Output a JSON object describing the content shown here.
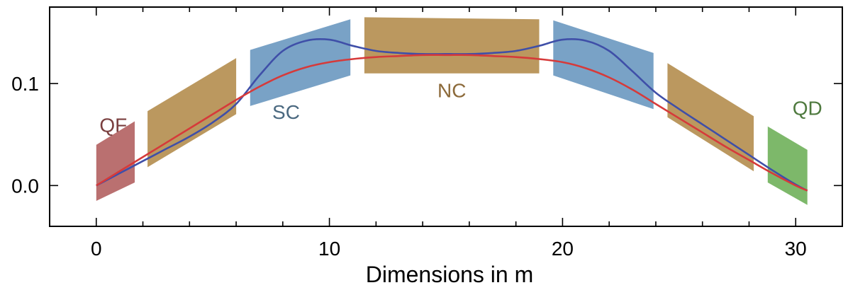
{
  "chart_data": {
    "type": "line",
    "title": "",
    "xlabel": "Dimensions in m",
    "ylabel": "",
    "xlim": [
      -2,
      32
    ],
    "ylim": [
      -0.04,
      0.175
    ],
    "x_ticks": [
      {
        "value": 0,
        "label": "0"
      },
      {
        "value": 10,
        "label": "10"
      },
      {
        "value": 20,
        "label": "20"
      },
      {
        "value": 30,
        "label": "30"
      }
    ],
    "y_ticks": [
      {
        "value": 0.0,
        "label": "0.0"
      },
      {
        "value": 0.1,
        "label": "0.1"
      }
    ],
    "grid": false,
    "regions": [
      {
        "label": "QF",
        "label_color": "#7a3f3f",
        "color": "#b36060",
        "x0": 0.0,
        "x1": 1.65,
        "y0_bottom": -0.015,
        "y0_top": 0.04,
        "y1_bottom": 0.003,
        "y1_top": 0.063
      },
      {
        "label": "",
        "color": "#b48d4e",
        "x0": 2.2,
        "x1": 6.0,
        "y0_bottom": 0.018,
        "y0_top": 0.073,
        "y1_bottom": 0.07,
        "y1_top": 0.125
      },
      {
        "label": "SC",
        "label_color": "#4b6980",
        "color": "#6a98c0",
        "x0": 6.6,
        "x1": 10.9,
        "y0_bottom": 0.078,
        "y0_top": 0.133,
        "y1_bottom": 0.108,
        "y1_top": 0.163
      },
      {
        "label": "NC",
        "label_color": "#8c6a3a",
        "color": "#b48d4e",
        "x0": 11.5,
        "x1": 19.0,
        "y0_bottom": 0.11,
        "y0_top": 0.165,
        "y1_bottom": 0.11,
        "y1_top": 0.163
      },
      {
        "label": "",
        "color": "#6a98c0",
        "x0": 19.6,
        "x1": 23.9,
        "y0_bottom": 0.108,
        "y0_top": 0.162,
        "y1_bottom": 0.075,
        "y1_top": 0.13
      },
      {
        "label": "",
        "color": "#b48d4e",
        "x0": 24.5,
        "x1": 28.2,
        "y0_bottom": 0.067,
        "y0_top": 0.12,
        "y1_bottom": 0.014,
        "y1_top": 0.068
      },
      {
        "label": "QD",
        "label_color": "#4f7a3f",
        "color": "#6fb05a",
        "x0": 28.8,
        "x1": 30.5,
        "y0_bottom": 0.003,
        "y0_top": 0.058,
        "y1_bottom": -0.019,
        "y1_top": 0.035
      }
    ],
    "series": [
      {
        "color": "#3f4fa8",
        "x": [
          0,
          1,
          2,
          3,
          4,
          5,
          6,
          7,
          8,
          9,
          10,
          11,
          12,
          13,
          14,
          15,
          16,
          17,
          18,
          19,
          20,
          21,
          22,
          23,
          24,
          25,
          26,
          27,
          28,
          29,
          30,
          30.5
        ],
        "y": [
          0.0,
          0.012,
          0.024,
          0.036,
          0.048,
          0.062,
          0.08,
          0.108,
          0.132,
          0.142,
          0.143,
          0.137,
          0.132,
          0.13,
          0.129,
          0.129,
          0.129,
          0.13,
          0.132,
          0.137,
          0.143,
          0.142,
          0.132,
          0.112,
          0.091,
          0.075,
          0.06,
          0.045,
          0.03,
          0.015,
          0.001,
          -0.005
        ]
      },
      {
        "color": "#d63a3a",
        "x": [
          0,
          1,
          2,
          3,
          4,
          5,
          6,
          7,
          8,
          9,
          10,
          11,
          12,
          13,
          14,
          15,
          16,
          17,
          18,
          19,
          20,
          21,
          22,
          23,
          24,
          25,
          26,
          27,
          28,
          29,
          30,
          30.5
        ],
        "y": [
          0.0,
          0.014,
          0.028,
          0.042,
          0.056,
          0.07,
          0.084,
          0.097,
          0.108,
          0.116,
          0.121,
          0.124,
          0.126,
          0.127,
          0.128,
          0.128,
          0.128,
          0.127,
          0.126,
          0.124,
          0.121,
          0.115,
          0.106,
          0.094,
          0.08,
          0.066,
          0.052,
          0.038,
          0.025,
          0.012,
          0.0,
          -0.005
        ]
      }
    ]
  }
}
